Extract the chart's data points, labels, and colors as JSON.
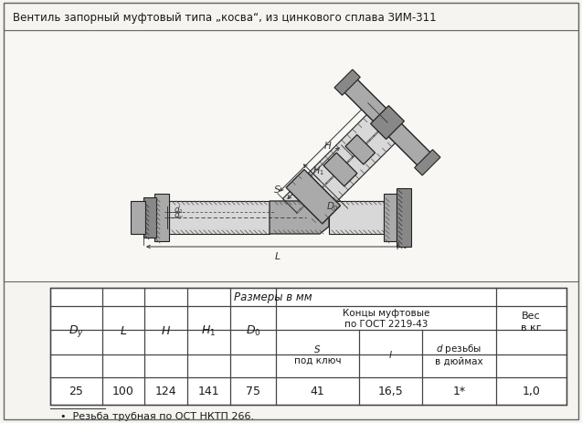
{
  "title": "Вентиль запорный муфтовый типа „косва“, из цинкового сплава ЗИМ-311",
  "bg_color": "#e8e6e0",
  "page_color": "#f5f4f0",
  "draw_bg": "#f8f7f4",
  "border_color": "#555555",
  "table_header1": "Размеры в мм",
  "table_header2": "Концы муфтовые\nпо ГОСТ 2219-43",
  "data_row": [
    "25",
    "100",
    "124",
    "141",
    "75",
    "41",
    "16,5",
    "1*",
    "1,0"
  ],
  "footnote": "  •  Резьба трубная по ОСТ НКТП 266.",
  "text_color": "#1a1a1a",
  "dim_color": "#333333",
  "hatch_color": "#555555",
  "line_color": "#222222",
  "table_border": "#444444",
  "gray_fill": "#b0b0b0",
  "gray_dark": "#888888",
  "gray_light": "#d8d8d8",
  "gray_mid": "#aaaaaa"
}
